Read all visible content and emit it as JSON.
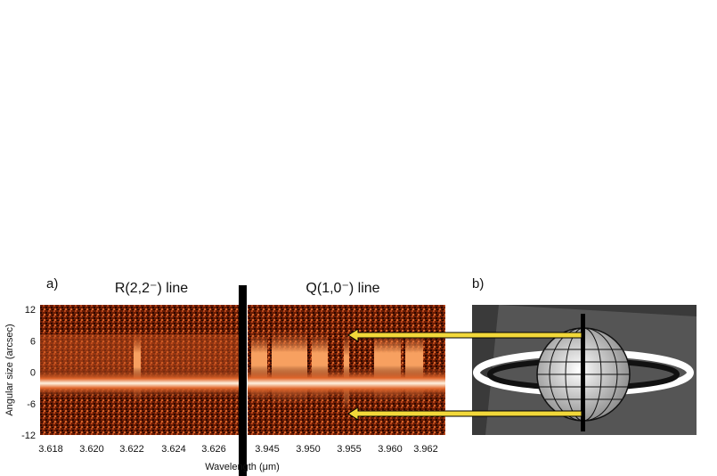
{
  "figure": {
    "panel_a": {
      "label": "a)",
      "left_title": "R(2,2⁻) line",
      "right_title": "Q(1,0⁻) line",
      "y_axis_label": "Angular size (arcsec)",
      "y_ticks": [
        "12",
        "6",
        "0",
        "-6",
        "-12"
      ],
      "left_x_ticks": [
        "3.618",
        "3.620",
        "3.622",
        "3.624",
        "3.626"
      ],
      "right_x_ticks": [
        "3.945",
        "3.950",
        "3.955",
        "3.960",
        "3.962"
      ],
      "x_axis_label": "Wavelength (μm)"
    },
    "panel_b": {
      "label": "b)"
    }
  }
}
